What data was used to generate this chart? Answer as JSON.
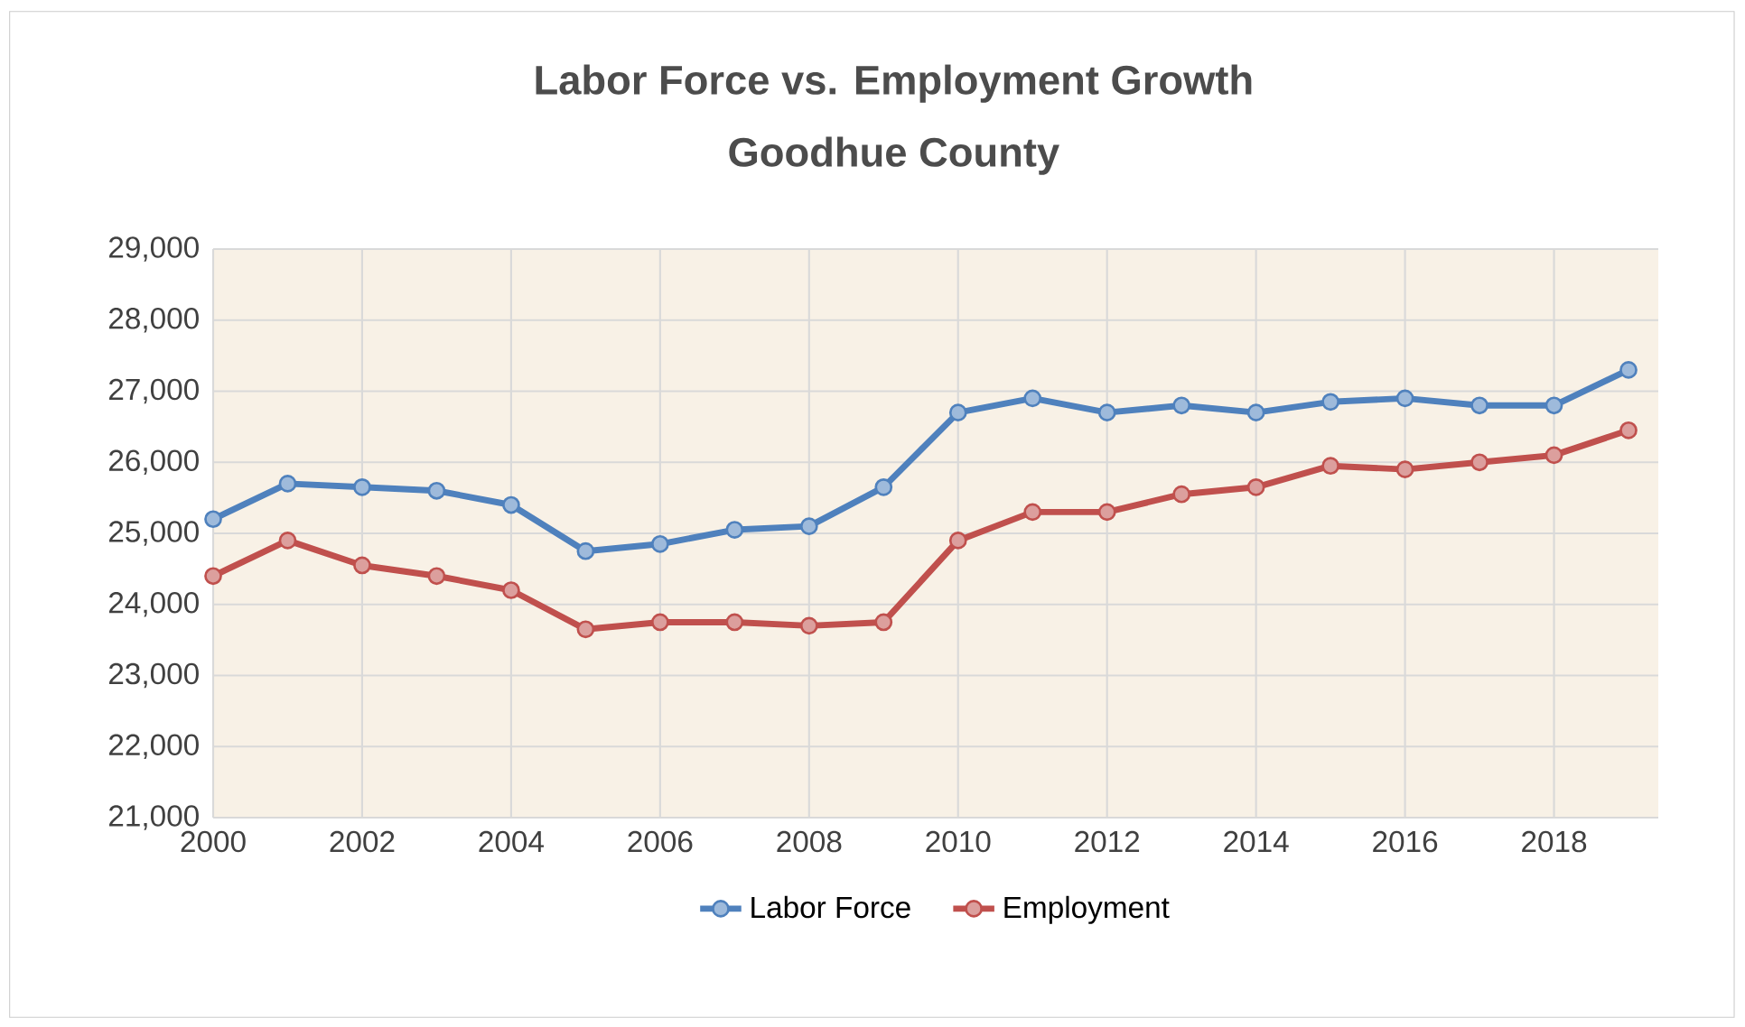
{
  "chart_data": {
    "type": "line",
    "title": "Labor Force vs. Employment Growth",
    "subtitle": "Goodhue County",
    "x": [
      2000,
      2001,
      2002,
      2003,
      2004,
      2005,
      2006,
      2007,
      2008,
      2009,
      2010,
      2011,
      2012,
      2013,
      2014,
      2015,
      2016,
      2017,
      2018,
      2019
    ],
    "series": [
      {
        "name": "Labor Force",
        "color": "#4f81bd",
        "values": [
          25200,
          25700,
          25650,
          25600,
          25400,
          24750,
          24850,
          25050,
          25100,
          25650,
          26700,
          26900,
          26700,
          26800,
          26700,
          26850,
          26900,
          26800,
          26800,
          27300
        ]
      },
      {
        "name": "Employment",
        "color": "#c0504d",
        "values": [
          24400,
          24900,
          24550,
          24400,
          24200,
          23650,
          23750,
          23750,
          23700,
          23750,
          24900,
          25300,
          25300,
          25550,
          25650,
          25950,
          25900,
          26000,
          26100,
          26450
        ]
      }
    ],
    "xlim": [
      2000,
      2019.4
    ],
    "ylim": [
      21000,
      29000
    ],
    "xticks": [
      2000,
      2002,
      2004,
      2006,
      2008,
      2010,
      2012,
      2014,
      2016,
      2018
    ],
    "yticks": [
      {
        "value": 21000,
        "label": "21,000"
      },
      {
        "value": 22000,
        "label": "22,000"
      },
      {
        "value": 23000,
        "label": "23,000"
      },
      {
        "value": 24000,
        "label": "24,000"
      },
      {
        "value": 25000,
        "label": "25,000"
      },
      {
        "value": 26000,
        "label": "26,000"
      },
      {
        "value": 27000,
        "label": "27,000"
      },
      {
        "value": 28000,
        "label": "28,000"
      },
      {
        "value": 29000,
        "label": "29,000"
      }
    ],
    "grid": true,
    "legend": "bottom",
    "marker": "circle",
    "line_style": "solid"
  }
}
